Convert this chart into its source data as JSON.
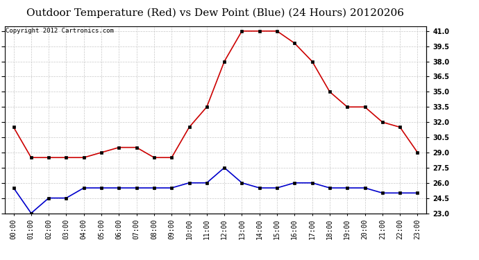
{
  "title": "Outdoor Temperature (Red) vs Dew Point (Blue) (24 Hours) 20120206",
  "copyright_text": "Copyright 2012 Cartronics.com",
  "hours": [
    "00:00",
    "01:00",
    "02:00",
    "03:00",
    "04:00",
    "05:00",
    "06:00",
    "07:00",
    "08:00",
    "09:00",
    "10:00",
    "11:00",
    "12:00",
    "13:00",
    "14:00",
    "15:00",
    "16:00",
    "17:00",
    "18:00",
    "19:00",
    "20:00",
    "21:00",
    "22:00",
    "23:00"
  ],
  "temp_red": [
    31.5,
    28.5,
    28.5,
    28.5,
    28.5,
    29.0,
    29.5,
    29.5,
    28.5,
    28.5,
    31.5,
    33.5,
    38.0,
    41.0,
    41.0,
    41.0,
    39.8,
    38.0,
    35.0,
    33.5,
    33.5,
    32.0,
    31.5,
    29.0
  ],
  "dew_blue": [
    25.5,
    23.0,
    24.5,
    24.5,
    25.5,
    25.5,
    25.5,
    25.5,
    25.5,
    25.5,
    26.0,
    26.0,
    27.5,
    26.0,
    25.5,
    25.5,
    26.0,
    26.0,
    25.5,
    25.5,
    25.5,
    25.0,
    25.0,
    25.0
  ],
  "ylim": [
    23.0,
    41.5
  ],
  "yticks": [
    23.0,
    24.5,
    26.0,
    27.5,
    29.0,
    30.5,
    32.0,
    33.5,
    35.0,
    36.5,
    38.0,
    39.5,
    41.0
  ],
  "grid_color": "#c8c8c8",
  "bg_color": "#ffffff",
  "plot_bg": "#ffffff",
  "red_color": "#cc0000",
  "blue_color": "#0000cc",
  "title_fontsize": 11,
  "copyright_fontsize": 6.5,
  "tick_fontsize": 7
}
